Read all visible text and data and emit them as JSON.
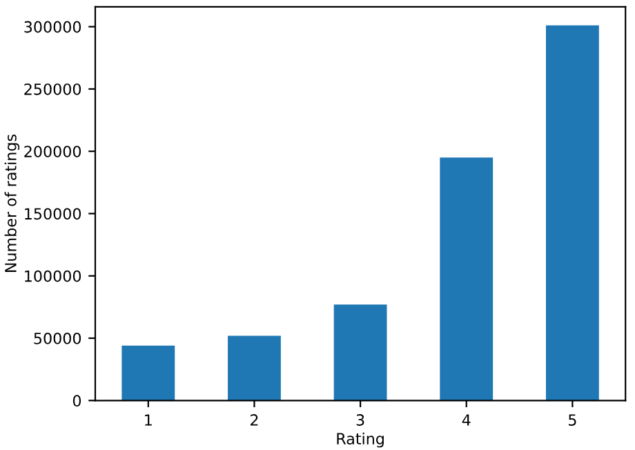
{
  "chart_data": {
    "type": "bar",
    "xlabel": "Rating",
    "ylabel": "Number of ratings",
    "categories": [
      "1",
      "2",
      "3",
      "4",
      "5"
    ],
    "values": [
      44000,
      52000,
      77000,
      195000,
      301000
    ],
    "color": "#1f77b4",
    "ylim": [
      0,
      316000
    ],
    "yticks": [
      0,
      50000,
      100000,
      150000,
      200000,
      250000,
      300000
    ],
    "grid": false
  }
}
